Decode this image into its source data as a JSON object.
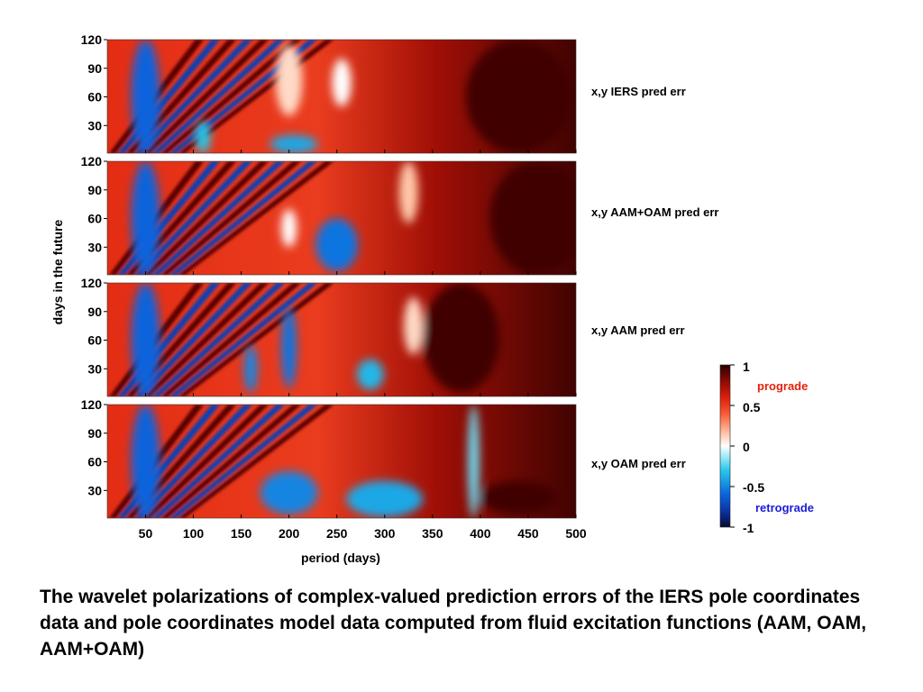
{
  "chart_data": {
    "type": "heatmap",
    "xlabel": "period (days)",
    "ylabel": "days in the future",
    "xlim": [
      10,
      500
    ],
    "ylim": [
      1,
      120
    ],
    "x_ticks": [
      "50",
      "100",
      "150",
      "200",
      "250",
      "300",
      "350",
      "400",
      "450",
      "500"
    ],
    "y_ticks": [
      "30",
      "60",
      "90",
      "120"
    ],
    "colorbar": {
      "range": [
        -1,
        1
      ],
      "tick_labels": [
        "1",
        "0.5",
        "0",
        "-0.5",
        "-1"
      ],
      "positive_label": "prograde",
      "negative_label": "retrograde",
      "positive_color": "#e8200a",
      "negative_color": "#1a1ad8"
    },
    "panels": [
      {
        "label": "x,y IERS pred err",
        "features": [
          {
            "period": 50,
            "width": 15,
            "from": 1,
            "to": 120,
            "value": -0.6
          },
          {
            "period": 110,
            "width": 8,
            "from": 1,
            "to": 35,
            "value": -0.3
          },
          {
            "period": 205,
            "width": 25,
            "from": 1,
            "to": 20,
            "value": -0.4
          },
          {
            "period": 255,
            "width": 10,
            "from": 50,
            "to": 100,
            "value": 0.0
          },
          {
            "period": 200,
            "width": 14,
            "from": 40,
            "to": 115,
            "value": 0.1
          },
          {
            "period": 440,
            "width": 55,
            "from": 1,
            "to": 120,
            "value": 0.95
          }
        ]
      },
      {
        "label": "x,y AAM+OAM pred err",
        "features": [
          {
            "period": 50,
            "width": 15,
            "from": 1,
            "to": 120,
            "value": -0.6
          },
          {
            "period": 250,
            "width": 22,
            "from": 5,
            "to": 60,
            "value": -0.55
          },
          {
            "period": 200,
            "width": 8,
            "from": 30,
            "to": 70,
            "value": 0.0
          },
          {
            "period": 325,
            "width": 10,
            "from": 55,
            "to": 120,
            "value": 0.15
          },
          {
            "period": 460,
            "width": 50,
            "from": 1,
            "to": 120,
            "value": 0.95
          }
        ]
      },
      {
        "label": "x,y AAM pred err",
        "features": [
          {
            "period": 50,
            "width": 15,
            "from": 1,
            "to": 120,
            "value": -0.6
          },
          {
            "period": 200,
            "width": 8,
            "from": 10,
            "to": 95,
            "value": -0.55
          },
          {
            "period": 160,
            "width": 7,
            "from": 5,
            "to": 55,
            "value": -0.5
          },
          {
            "period": 285,
            "width": 14,
            "from": 8,
            "to": 40,
            "value": -0.35
          },
          {
            "period": 330,
            "width": 10,
            "from": 45,
            "to": 105,
            "value": 0.1
          },
          {
            "period": 380,
            "width": 40,
            "from": 5,
            "to": 120,
            "value": 0.95
          }
        ]
      },
      {
        "label": "x,y OAM pred err",
        "features": [
          {
            "period": 50,
            "width": 15,
            "from": 1,
            "to": 120,
            "value": -0.6
          },
          {
            "period": 200,
            "width": 30,
            "from": 5,
            "to": 50,
            "value": -0.5
          },
          {
            "period": 300,
            "width": 40,
            "from": 2,
            "to": 40,
            "value": -0.4
          },
          {
            "period": 393,
            "width": 6,
            "from": 1,
            "to": 120,
            "value": -0.2
          },
          {
            "period": 440,
            "width": 40,
            "from": 5,
            "to": 40,
            "value": 0.95
          }
        ]
      }
    ]
  },
  "caption": "The wavelet polarizations of complex-valued prediction errors of the IERS pole coordinates data and pole coordinates model data computed from fluid excitation functions (AAM, OAM, AAM+OAM)"
}
